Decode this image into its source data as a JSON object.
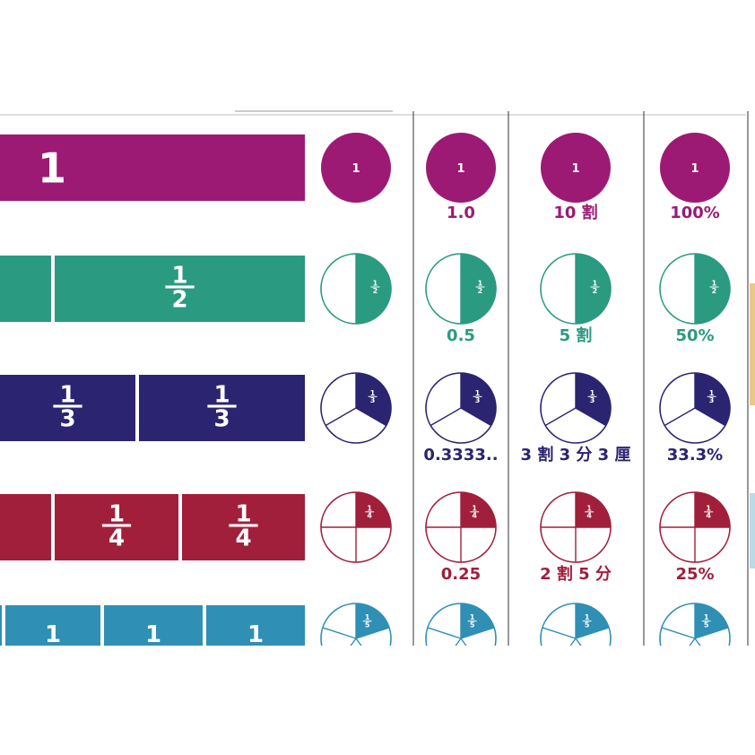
{
  "rows": [
    {
      "id": "whole",
      "color": "#9c1a73",
      "denominator": 1,
      "pie_label": "1",
      "bar_labels": [
        "1"
      ],
      "decimal": "1.0",
      "wari": "10 割",
      "percent": "100%"
    },
    {
      "id": "half",
      "color": "#2a9a80",
      "denominator": 2,
      "pie_label": "1/2",
      "bar_labels": [
        "1/2"
      ],
      "decimal": "0.5",
      "wari": "5 割",
      "percent": "50%"
    },
    {
      "id": "third",
      "color": "#2b2470",
      "denominator": 3,
      "pie_label": "1/3",
      "bar_labels": [
        "1/3",
        "1/3"
      ],
      "decimal": "0.3333..",
      "wari": "3 割 3 分 3 厘",
      "percent": "33.3%"
    },
    {
      "id": "quarter",
      "color": "#a11f3b",
      "denominator": 4,
      "pie_label": "1/4",
      "bar_labels": [
        "1/4",
        "1/4"
      ],
      "decimal": "0.25",
      "wari": "2 割 5 分",
      "percent": "25%"
    },
    {
      "id": "fifth",
      "color": "#2f8fb5",
      "denominator": 5,
      "pie_label": "1/5",
      "bar_labels": [
        "1",
        "1",
        "1"
      ],
      "decimal": "",
      "wari": "",
      "percent": ""
    }
  ],
  "side_accents": [
    "#e9c98a",
    "#bcd9e6"
  ]
}
